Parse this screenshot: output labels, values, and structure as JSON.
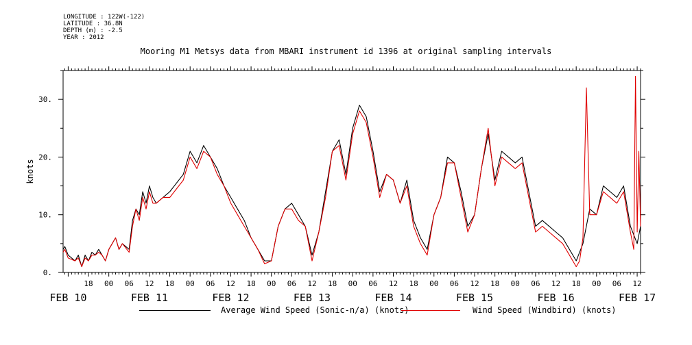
{
  "header": {
    "longitude": "LONGITUDE : 122W(-122)",
    "latitude": "LATITUDE : 36.8N",
    "depth": "DEPTH (m) : -2.5",
    "year": "YEAR : 2012"
  },
  "colors": {
    "series_a": "#000000",
    "series_b": "#e00000"
  },
  "chart_data": {
    "type": "line",
    "title": "Mooring M1 Metsys data from MBARI instrument id 1396 at original sampling intervals",
    "ylabel": "knots",
    "xlabel": "",
    "ylim": [
      0,
      35
    ],
    "y_ticks": [
      0,
      10,
      20,
      30
    ],
    "y_tick_labels": [
      "0.",
      "10.",
      "20.",
      "30."
    ],
    "xlim_hours": [
      10.5,
      181
    ],
    "x_hour_ticks": [
      18,
      24,
      30,
      36,
      42,
      48,
      54,
      60,
      66,
      72,
      78,
      84,
      90,
      96,
      102,
      108,
      114,
      120,
      126,
      132,
      138,
      144,
      150,
      156,
      162,
      168,
      174,
      180
    ],
    "x_hour_labels": [
      "18",
      "00",
      "06",
      "12",
      "18",
      "00",
      "06",
      "12",
      "18",
      "00",
      "06",
      "12",
      "18",
      "00",
      "06",
      "12",
      "18",
      "00",
      "06",
      "12",
      "18",
      "00",
      "06",
      "12",
      "18",
      "00",
      "06",
      "12"
    ],
    "day_labels": [
      "FEB 10",
      "FEB 11",
      "FEB 12",
      "FEB 13",
      "FEB 14",
      "FEB 15",
      "FEB 16",
      "FEB 17"
    ],
    "day_hours": [
      12,
      36,
      60,
      84,
      108,
      132,
      156,
      180
    ],
    "x_unit_note": "hours since 00 FEB 10",
    "series": [
      {
        "name": "Average Wind Speed (Sonic-n/a) (knots)",
        "x": [
          10.5,
          11,
          12,
          14,
          15,
          16,
          17,
          18,
          19,
          20,
          21,
          22,
          23,
          24,
          26,
          27,
          28,
          30,
          31,
          32,
          33,
          34,
          35,
          36,
          37,
          38,
          40,
          42,
          46,
          48,
          50,
          52,
          54,
          56,
          58,
          60,
          62,
          64,
          66,
          68,
          70,
          72,
          74,
          76,
          78,
          80,
          82,
          84,
          86,
          88,
          90,
          92,
          94,
          96,
          98,
          100,
          102,
          104,
          106,
          108,
          110,
          112,
          114,
          116,
          118,
          120,
          122,
          124,
          126,
          128,
          130,
          132,
          134,
          136,
          138,
          140,
          142,
          144,
          146,
          148,
          150,
          152,
          154,
          156,
          158,
          160,
          162,
          164,
          166,
          168,
          170,
          172,
          174,
          176,
          178,
          180,
          181
        ],
        "y": [
          4,
          4.5,
          3,
          2,
          3,
          1,
          3,
          2,
          3.5,
          3,
          4,
          3,
          2,
          4,
          6,
          4,
          5,
          4,
          9,
          11,
          10,
          14,
          12,
          15,
          13,
          12,
          13,
          14,
          17,
          21,
          19,
          22,
          20,
          18,
          15,
          13,
          11,
          9,
          6,
          4,
          2,
          2,
          8,
          11,
          12,
          10,
          8,
          3,
          7,
          14,
          21,
          23,
          17,
          25,
          29,
          27,
          21,
          14,
          17,
          16,
          12,
          16,
          9,
          6,
          4,
          10,
          13,
          20,
          19,
          14,
          8,
          10,
          18,
          24,
          16,
          21,
          20,
          19,
          20,
          14,
          8,
          9,
          8,
          7,
          6,
          4,
          2,
          5,
          11,
          10,
          15,
          14,
          13,
          15,
          8,
          5,
          8
        ]
      },
      {
        "name": "Wind Speed (Windbird) (knots)",
        "x": [
          10.5,
          11,
          12,
          14,
          15,
          16,
          17,
          18,
          19,
          20,
          21,
          22,
          23,
          24,
          26,
          27,
          28,
          30,
          31,
          32,
          33,
          34,
          35,
          36,
          37,
          38,
          40,
          42,
          46,
          48,
          50,
          52,
          54,
          56,
          58,
          60,
          62,
          64,
          66,
          68,
          70,
          72,
          74,
          76,
          78,
          80,
          82,
          84,
          86,
          88,
          90,
          92,
          94,
          96,
          98,
          100,
          102,
          104,
          106,
          108,
          110,
          112,
          114,
          116,
          118,
          120,
          122,
          124,
          126,
          128,
          130,
          132,
          134,
          136,
          138,
          140,
          142,
          144,
          146,
          148,
          150,
          152,
          154,
          156,
          158,
          160,
          162,
          163,
          164,
          165,
          166,
          168,
          170,
          172,
          174,
          176,
          178,
          179,
          179.5,
          180,
          180.5,
          181
        ],
        "y": [
          3.5,
          4,
          2.5,
          2,
          2.5,
          1,
          2.5,
          2,
          3,
          3,
          3.5,
          3,
          2,
          4,
          6,
          4,
          5,
          3.5,
          8,
          11,
          9,
          13,
          11,
          14,
          12,
          12,
          13,
          13,
          16,
          20,
          18,
          21,
          20,
          17,
          15,
          12,
          10,
          8,
          6,
          4,
          1.5,
          2,
          8,
          11,
          11,
          9,
          8,
          2,
          7,
          13,
          21,
          22,
          16,
          24,
          28,
          26,
          20,
          13,
          17,
          16,
          12,
          15,
          8,
          5,
          3,
          10,
          13,
          19,
          19,
          13,
          7,
          10,
          18,
          25,
          15,
          20,
          19,
          18,
          19,
          13,
          7,
          8,
          7,
          6,
          5,
          3,
          1,
          2,
          6,
          32,
          10,
          10,
          14,
          13,
          12,
          14,
          7,
          4,
          34,
          7,
          21,
          8
        ]
      }
    ]
  }
}
